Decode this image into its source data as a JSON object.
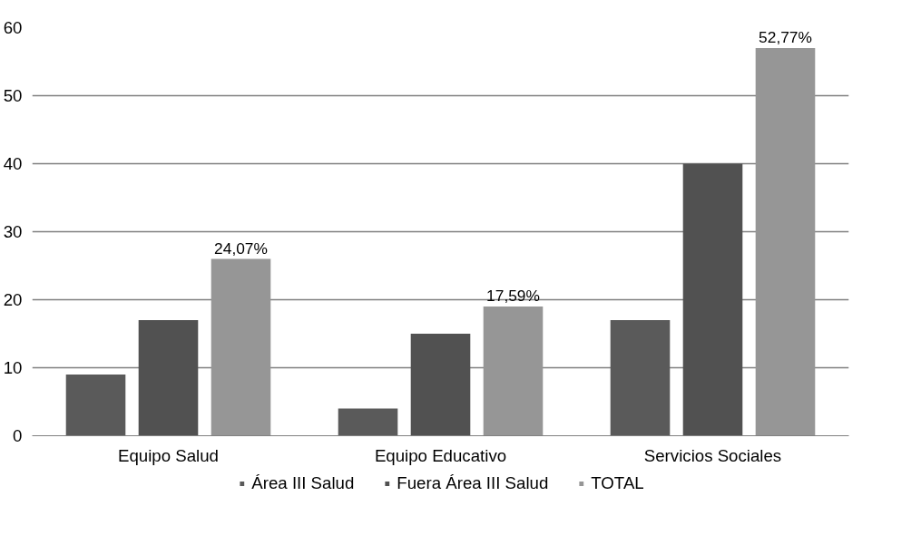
{
  "chart_data": {
    "type": "bar",
    "categories": [
      "Equipo Salud",
      "Equipo Educativo",
      "Servicios Sociales"
    ],
    "series": [
      {
        "name": "Área III Salud",
        "color": "#5a5a5a",
        "values": [
          9,
          4,
          17
        ]
      },
      {
        "name": "Fuera Área III Salud",
        "color": "#515151",
        "values": [
          17,
          15,
          40
        ]
      },
      {
        "name": "TOTAL",
        "color": "#969696",
        "values": [
          26,
          19,
          57
        ]
      }
    ],
    "annotations": [
      "24,07%",
      "17,59%",
      "52,77%"
    ],
    "ylim": [
      0,
      60
    ],
    "yticks": [
      0,
      10,
      20,
      30,
      40,
      50,
      60
    ],
    "grid": "y",
    "legend": "bottom"
  }
}
